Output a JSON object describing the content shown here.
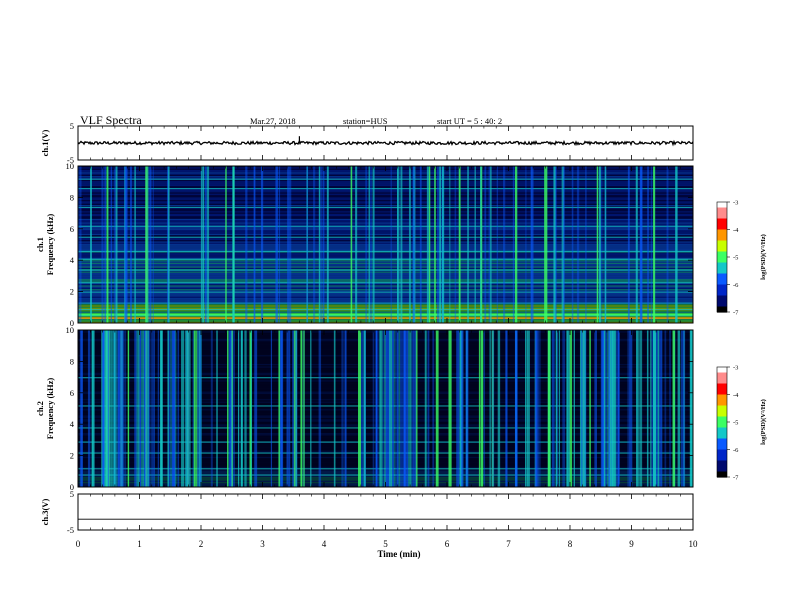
{
  "header": {
    "title": "VLF Spectra",
    "date": "Mar.27, 2018",
    "station": "station=HUS",
    "start_ut": "start  UT =  5 : 40: 2"
  },
  "colors": {
    "background": "#000000",
    "colormap": [
      "#000020",
      "#000a6e",
      "#0026c8",
      "#0a5aff",
      "#14c8c8",
      "#3cff64",
      "#c8ff00",
      "#ff9600",
      "#ff0000",
      "#ff8c8c",
      "#ffffff"
    ]
  },
  "chart_data": [
    {
      "type": "line",
      "name": "ch1-waveform",
      "ylabel": "ch.1(V)",
      "ylim": [
        -5,
        5
      ],
      "yticks": [
        "5",
        "-5"
      ],
      "xlim": [
        0,
        10
      ],
      "baseline": 0,
      "spike": {
        "x": 3.6,
        "y": 2.0
      }
    },
    {
      "type": "heatmap",
      "name": "ch1-spectrogram",
      "ylabel": "ch.1\nFrequency (kHz)",
      "ylim": [
        0,
        10
      ],
      "yticks": [
        "0",
        "2",
        "4",
        "6",
        "8",
        "10"
      ],
      "xlim": [
        0,
        10
      ],
      "colorbar": {
        "label": "log(PSD)(V²/Hz)",
        "range": [
          -7,
          -3
        ],
        "ticks": [
          "-3",
          "-4",
          "-5",
          "-6",
          "-7"
        ]
      }
    },
    {
      "type": "heatmap",
      "name": "ch2-spectrogram",
      "ylabel": "ch.2\nFrequency (kHz)",
      "ylim": [
        0,
        10
      ],
      "yticks": [
        "0",
        "2",
        "4",
        "6",
        "8",
        "10"
      ],
      "xlim": [
        0,
        10
      ],
      "colorbar": {
        "label": "log(PSD)(V²/Hz)",
        "range": [
          -7,
          -3
        ],
        "ticks": [
          "-3",
          "-4",
          "-5",
          "-6",
          "-7"
        ]
      }
    },
    {
      "type": "line",
      "name": "ch3-waveform",
      "ylabel": "ch.3(V)",
      "ylim": [
        -5,
        5
      ],
      "yticks": [
        "5",
        "-5"
      ],
      "xlim": [
        0,
        10
      ],
      "baseline": -2
    }
  ],
  "xaxis": {
    "label": "Time  (min)",
    "range": [
      0,
      10
    ],
    "ticks": [
      "0",
      "1",
      "2",
      "3",
      "4",
      "5",
      "6",
      "7",
      "8",
      "9",
      "10"
    ]
  }
}
